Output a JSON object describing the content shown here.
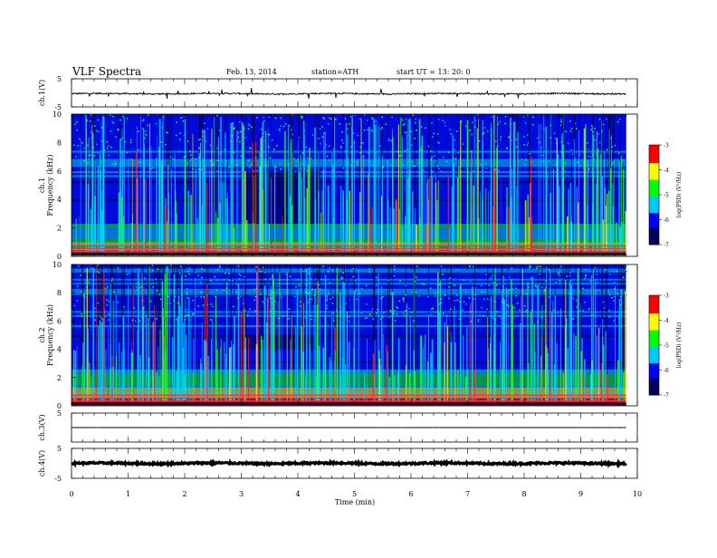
{
  "header": {
    "title": "VLF Spectra",
    "date": "Feb. 13, 2014",
    "station": "station=ATH",
    "start": "start  UT  =   13: 20: 0"
  },
  "chart_data": [
    {
      "type": "line",
      "name": "ch1-waveform",
      "ylabel": "ch.1(V)",
      "ylim": [
        -5,
        5
      ],
      "yticks": [
        "5",
        "-5"
      ],
      "xlim": [
        0,
        10
      ],
      "level": -0.3,
      "noise": 0.25
    },
    {
      "type": "heatmap",
      "name": "ch1-spectrogram",
      "ylabel_channel": "ch.1",
      "ylabel": "Frequency  (kHz)",
      "ylim": [
        0,
        10
      ],
      "yticks": [
        "0",
        "2",
        "4",
        "6",
        "8",
        "10"
      ],
      "xlim": [
        0,
        10
      ],
      "data_end_min": 9.8,
      "colorbar": {
        "label": "log(PSD) (V²/Hz)",
        "range": [
          -7,
          -3
        ],
        "ticks": [
          "-3",
          "-4",
          "-5",
          "-6",
          "-7"
        ]
      }
    },
    {
      "type": "heatmap",
      "name": "ch2-spectrogram",
      "ylabel_channel": "ch.2",
      "ylabel": "Frequency  (kHz)",
      "ylim": [
        0,
        10
      ],
      "yticks": [
        "0",
        "2",
        "4",
        "6",
        "8",
        "10"
      ],
      "xlim": [
        0,
        10
      ],
      "data_end_min": 9.8,
      "colorbar": {
        "label": "log(PSD) (V²/Hz)",
        "range": [
          -7,
          -3
        ],
        "ticks": [
          "-3",
          "-4",
          "-5",
          "-6",
          "-7"
        ]
      }
    },
    {
      "type": "line",
      "name": "ch3-waveform",
      "ylabel": "ch.3(V)",
      "ylim": [
        -5,
        5
      ],
      "yticks": [
        "5"
      ],
      "xlim": [
        0,
        10
      ],
      "level": 0.0,
      "noise": 0.02
    },
    {
      "type": "line",
      "name": "ch4-waveform",
      "ylabel": "ch.4(V)",
      "ylim": [
        -5,
        5
      ],
      "yticks": [
        "5",
        "-5"
      ],
      "xlim": [
        0,
        10
      ],
      "level": 0.0,
      "noise": 0.3
    }
  ],
  "xaxis": {
    "label": "Time  (min)",
    "ticks": [
      "0",
      "1",
      "2",
      "3",
      "4",
      "5",
      "6",
      "7",
      "8",
      "9",
      "10"
    ]
  },
  "colors": {
    "scale": [
      "#000060",
      "#0000ff",
      "#00c8ff",
      "#00ff00",
      "#ffff00",
      "#ff0000",
      "#ffffff"
    ]
  }
}
